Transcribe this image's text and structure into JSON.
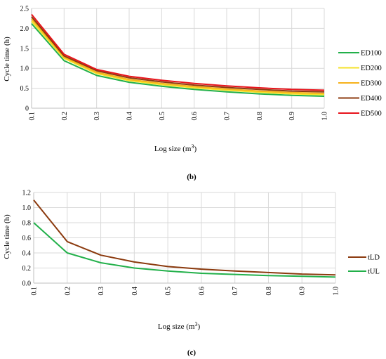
{
  "chart_data": [
    {
      "type": "line",
      "panel_label": "(b)",
      "xlabel": "Log size (m",
      "xlabel_sup": "3",
      "xlabel_end": ")",
      "ylabel": "Cycle time (h)",
      "x": [
        "0.1",
        "0.2",
        "0.3",
        "0.4",
        "0.5",
        "0.6",
        "0.7",
        "0.8",
        "0.9",
        "1.0"
      ],
      "y_ticks": [
        "0",
        "0.5",
        "1.0",
        "1.5",
        "2.0",
        "2.5"
      ],
      "ylim": [
        0,
        2.5
      ],
      "grid": true,
      "legend_position": "right",
      "series": [
        {
          "name": "ED100",
          "color": "#22b04a",
          "values": [
            2.12,
            1.19,
            0.82,
            0.65,
            0.55,
            0.47,
            0.41,
            0.36,
            0.32,
            0.3
          ]
        },
        {
          "name": "ED200",
          "color": "#f5e22a",
          "values": [
            2.18,
            1.25,
            0.87,
            0.69,
            0.59,
            0.51,
            0.45,
            0.4,
            0.36,
            0.34
          ]
        },
        {
          "name": "ED300",
          "color": "#f6b21b",
          "values": [
            2.24,
            1.28,
            0.9,
            0.72,
            0.62,
            0.54,
            0.48,
            0.43,
            0.39,
            0.37
          ]
        },
        {
          "name": "ED400",
          "color": "#8b3a0e",
          "values": [
            2.29,
            1.31,
            0.94,
            0.76,
            0.66,
            0.58,
            0.52,
            0.47,
            0.43,
            0.41
          ]
        },
        {
          "name": "ED500",
          "color": "#e8141c",
          "values": [
            2.35,
            1.35,
            0.97,
            0.8,
            0.7,
            0.62,
            0.56,
            0.51,
            0.47,
            0.45
          ]
        }
      ]
    },
    {
      "type": "line",
      "panel_label": "(c)",
      "xlabel": "Log size (m",
      "xlabel_sup": "3",
      "xlabel_end": ")",
      "ylabel": "Cycle time (h)",
      "x": [
        "0.1",
        "0.2",
        "0.3",
        "0.4",
        "0.5",
        "0.6",
        "0.7",
        "0.8",
        "0.9",
        "1.0"
      ],
      "y_ticks": [
        "0.0",
        "0.2",
        "0.4",
        "0.6",
        "0.8",
        "1.0",
        "1.2"
      ],
      "ylim": [
        0,
        1.2
      ],
      "grid": true,
      "legend_position": "right",
      "series": [
        {
          "name": "tLD",
          "color": "#8b3a0e",
          "values": [
            1.1,
            0.55,
            0.37,
            0.28,
            0.22,
            0.185,
            0.16,
            0.14,
            0.12,
            0.11
          ]
        },
        {
          "name": "tUL",
          "color": "#22b04a",
          "values": [
            0.8,
            0.4,
            0.27,
            0.2,
            0.16,
            0.13,
            0.115,
            0.1,
            0.09,
            0.08
          ]
        }
      ]
    }
  ]
}
